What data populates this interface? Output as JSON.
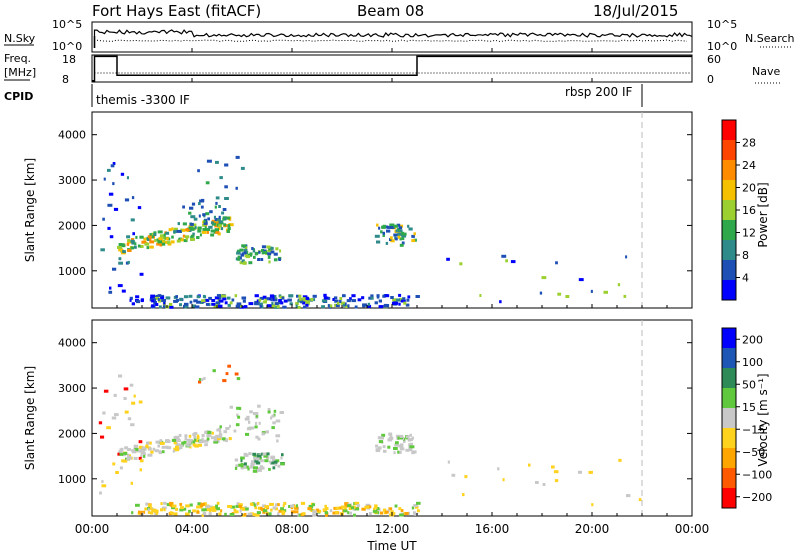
{
  "header": {
    "radar": "Fort Hays East (fitACF)",
    "beam": "Beam 08",
    "date": "18/Jul/2015"
  },
  "top_panels": {
    "nsky_label": "N.Sky",
    "nsearch_label": "N.Search",
    "nsky_ticks": [
      "10^5",
      "10^0"
    ],
    "nsearch_ticks": [
      "10^5",
      "10^0"
    ],
    "freq_label": "Freq.",
    "freq_unit": "[MHz]",
    "freq_ticks": [
      "18",
      "8"
    ],
    "nave_label": "Nave",
    "nave_ticks": [
      "60",
      "0"
    ],
    "cpid_label": "CPID",
    "cpid_modes": [
      {
        "label": "themis -3300 IF",
        "start_hour": 0.0
      },
      {
        "label": "rbsp 200 IF",
        "start_hour": 21.75
      }
    ]
  },
  "colors": {
    "power_scale": [
      "#0000ff",
      "#1e4fb5",
      "#2f8a8a",
      "#2ea84a",
      "#9ccf30",
      "#f5c000",
      "#ff8c00",
      "#ff4500",
      "#ff0000"
    ],
    "velocity_scale": [
      "#ff0000",
      "#ff5a00",
      "#ffa500",
      "#ffd21e",
      "#c8c8c8",
      "#5fc83c",
      "#2e8b57",
      "#1e56b5",
      "#0000ff"
    ]
  },
  "chart_data": [
    {
      "type": "line",
      "name": "frequency-nave-panel",
      "x_unit": "hours UT",
      "freq_steps": [
        {
          "start": 0.0,
          "end": 0.1,
          "value": 8.5
        },
        {
          "start": 0.1,
          "end": 1.0,
          "value": 17.5
        },
        {
          "start": 1.0,
          "end": 13.0,
          "value": 10.5
        },
        {
          "start": 13.0,
          "end": 24.0,
          "value": 17.5
        }
      ],
      "nave_level": 20,
      "nave_ylim": [
        0,
        60
      ],
      "freq_ylim": [
        8,
        18
      ]
    },
    {
      "type": "heatmap",
      "name": "power",
      "xlabel": "",
      "ylabel": "Slant Range [km]",
      "colorbar_label": "Power [dB]",
      "colorbar_ticks": [
        4,
        8,
        12,
        16,
        20,
        24,
        28
      ],
      "xlim": [
        0,
        24
      ],
      "ylim": [
        180,
        4500
      ],
      "y_ticks": [
        1000,
        2000,
        3000,
        4000
      ],
      "blobs": [
        {
          "t0": 1.0,
          "t1": 5.5,
          "r0": 1350,
          "r1": 1650,
          "r_end0": 1850,
          "r_end1": 2200,
          "n": 160,
          "palette": [
            2,
            3,
            4,
            5,
            6,
            3
          ]
        },
        {
          "t0": 3.3,
          "t1": 5.3,
          "r0": 1800,
          "r1": 2600,
          "r_end0": 2000,
          "r_end1": 2600,
          "n": 40,
          "palette": [
            1,
            2,
            3
          ]
        },
        {
          "t0": 5.7,
          "t1": 7.5,
          "r0": 1150,
          "r1": 1550,
          "r_end0": 1150,
          "r_end1": 1500,
          "n": 60,
          "palette": [
            1,
            2,
            3,
            4
          ]
        },
        {
          "t0": 11.3,
          "t1": 12.9,
          "r0": 1550,
          "r1": 2000,
          "r_end0": 1550,
          "r_end1": 2000,
          "n": 50,
          "palette": [
            1,
            2,
            3,
            5
          ]
        },
        {
          "t0": 1.5,
          "t1": 13.0,
          "r0": 180,
          "r1": 450,
          "r_end0": 180,
          "r_end1": 450,
          "n": 240,
          "palette": [
            0,
            1,
            1,
            2,
            4
          ]
        },
        {
          "t0": 0.2,
          "t1": 2.0,
          "r0": 500,
          "r1": 3400,
          "r_end0": 500,
          "r_end1": 3400,
          "n": 30,
          "palette": [
            0,
            1,
            2
          ]
        },
        {
          "t0": 14.0,
          "t1": 22.0,
          "r0": 300,
          "r1": 1400,
          "r_end0": 300,
          "r_end1": 1400,
          "n": 18,
          "palette": [
            0,
            1,
            4
          ]
        },
        {
          "t0": 4.2,
          "t1": 6.0,
          "r0": 2800,
          "r1": 3500,
          "r_end0": 2800,
          "r_end1": 3500,
          "n": 10,
          "palette": [
            1,
            2,
            3
          ]
        }
      ]
    },
    {
      "type": "heatmap",
      "name": "velocity",
      "xlabel": "Time UT",
      "ylabel": "Slant Range [km]",
      "colorbar_label": "Velocity [m s⁻¹]",
      "colorbar_ticks": [
        -200,
        -100,
        -50,
        -15,
        15,
        50,
        100,
        200
      ],
      "xlim": [
        0,
        24
      ],
      "x_ticks": [
        "00:00",
        "04:00",
        "08:00",
        "12:00",
        "16:00",
        "20:00",
        "00:00"
      ],
      "ylim": [
        180,
        4500
      ],
      "y_ticks": [
        1000,
        2000,
        3000,
        4000
      ],
      "blobs": [
        {
          "t0": 1.0,
          "t1": 5.5,
          "r0": 1350,
          "r1": 1650,
          "r_end0": 1850,
          "r_end1": 2200,
          "n": 160,
          "palette": [
            4,
            4,
            4,
            4,
            3,
            5
          ]
        },
        {
          "t0": 5.5,
          "t1": 7.6,
          "r0": 1800,
          "r1": 2600,
          "r_end0": 1800,
          "r_end1": 2600,
          "n": 40,
          "palette": [
            4,
            4,
            5
          ]
        },
        {
          "t0": 5.7,
          "t1": 7.6,
          "r0": 1150,
          "r1": 1550,
          "r_end0": 1150,
          "r_end1": 1550,
          "n": 60,
          "palette": [
            4,
            4,
            5,
            6
          ]
        },
        {
          "t0": 11.3,
          "t1": 12.9,
          "r0": 1550,
          "r1": 2000,
          "r_end0": 1550,
          "r_end1": 2000,
          "n": 50,
          "palette": [
            4,
            4,
            4,
            5
          ]
        },
        {
          "t0": 1.5,
          "t1": 13.0,
          "r0": 180,
          "r1": 450,
          "r_end0": 180,
          "r_end1": 450,
          "n": 240,
          "palette": [
            2,
            3,
            3,
            4,
            5
          ]
        },
        {
          "t0": 0.2,
          "t1": 2.0,
          "r0": 500,
          "r1": 3400,
          "r_end0": 500,
          "r_end1": 3400,
          "n": 30,
          "palette": [
            4,
            3,
            0
          ]
        },
        {
          "t0": 14.0,
          "t1": 22.0,
          "r0": 300,
          "r1": 1400,
          "r_end0": 300,
          "r_end1": 1400,
          "n": 18,
          "palette": [
            4,
            3
          ]
        },
        {
          "t0": 4.2,
          "t1": 6.0,
          "r0": 2800,
          "r1": 3500,
          "r_end0": 2800,
          "r_end1": 3500,
          "n": 10,
          "palette": [
            4,
            1,
            5
          ]
        }
      ]
    }
  ]
}
